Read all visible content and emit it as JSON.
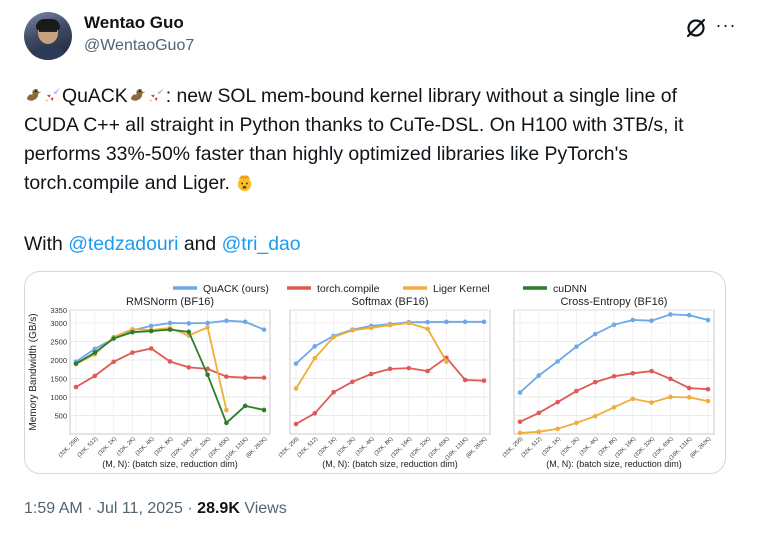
{
  "author": {
    "name": "Wentao Guo",
    "handle": "@WentaoGuo7"
  },
  "icons": {
    "grok": "grok-icon",
    "more": "more-icon"
  },
  "tweet": {
    "lead": "QuACK",
    "body": ": new SOL mem-bound kernel library without a single line of CUDA C++ all straight in Python thanks to CuTe-DSL. On H100 with 3TB/s, it performs 33%-50% faster than highly optimized libraries like PyTorch's torch.compile and Liger.",
    "with": "With",
    "mention1": "@tedzadouri",
    "and": "and",
    "mention2": "@tri_dao"
  },
  "meta": {
    "time": "1:59 AM",
    "date": "Jul 11, 2025",
    "views_count": "28.9K",
    "views_label": "Views",
    "sep": "·"
  },
  "chart_data": {
    "type": "line",
    "ylabel": "Memory Bandwidth (GB/s)",
    "xlabel": "(M, N): (batch size, reduction dim)",
    "yticks": [
      500,
      1000,
      1500,
      2000,
      2500,
      3000,
      3350
    ],
    "ylim": [
      0,
      3350
    ],
    "legend": [
      {
        "name": "QuACK (ours)",
        "color": "#6fa8e8"
      },
      {
        "name": "torch.compile",
        "color": "#e05a55"
      },
      {
        "name": "Liger Kernel",
        "color": "#f0ad3a"
      },
      {
        "name": "cuDNN",
        "color": "#2a7e2a"
      }
    ],
    "panels": [
      {
        "title": "RMSNorm (BF16)",
        "categories": [
          "(32K, 256)",
          "(32K, 512)",
          "(32K, 1K)",
          "(32K, 2K)",
          "(32K, 4K)",
          "(32K, 8K)",
          "(32K, 16K)",
          "(32K, 32K)",
          "(32K, 65K)",
          "(16K, 131K)",
          "(8K, 262K)"
        ],
        "series": [
          {
            "name": "QuACK (ours)",
            "values": [
              1950,
              2300,
              2580,
              2800,
              2920,
              3000,
              2990,
              3000,
              3060,
              3030,
              2820
            ]
          },
          {
            "name": "torch.compile",
            "values": [
              1270,
              1570,
              1950,
              2200,
              2310,
              1960,
              1800,
              1760,
              1550,
              1520,
              1520
            ]
          },
          {
            "name": "Liger Kernel",
            "values": [
              1890,
              2150,
              2620,
              2830,
              2810,
              2860,
              2660,
              2880,
              650,
              null,
              null
            ]
          },
          {
            "name": "cuDNN",
            "values": [
              1900,
              2200,
              2580,
              2750,
              2780,
              2820,
              2760,
              1600,
              300,
              760,
              650
            ]
          }
        ]
      },
      {
        "title": "Softmax (BF16)",
        "categories": [
          "(32K, 256)",
          "(32K, 512)",
          "(32K, 1K)",
          "(32K, 2K)",
          "(32K, 4K)",
          "(32K, 8K)",
          "(32K, 16K)",
          "(32K, 32K)",
          "(32K, 65K)",
          "(16K, 131K)",
          "(8K, 262K)"
        ],
        "series": [
          {
            "name": "QuACK (ours)",
            "values": [
              1900,
              2370,
              2650,
              2820,
              2920,
              2970,
              3020,
              3020,
              3030,
              3030,
              3030
            ]
          },
          {
            "name": "torch.compile",
            "values": [
              270,
              560,
              1130,
              1410,
              1620,
              1760,
              1780,
              1700,
              2060,
              1460,
              1440
            ]
          },
          {
            "name": "Liger Kernel",
            "values": [
              1230,
              2050,
              2620,
              2800,
              2870,
              2940,
              3000,
              2840,
              1960,
              null,
              null
            ]
          }
        ]
      },
      {
        "title": "Cross-Entropy (BF16)",
        "categories": [
          "(32K, 256)",
          "(32K, 512)",
          "(32K, 1K)",
          "(32K, 2K)",
          "(32K, 4K)",
          "(32K, 8K)",
          "(32K, 16K)",
          "(32K, 32K)",
          "(32K, 65K)",
          "(16K, 131K)",
          "(8K, 262K)"
        ],
        "series": [
          {
            "name": "QuACK (ours)",
            "values": [
              1120,
              1580,
              1960,
              2360,
              2700,
              2950,
              3080,
              3060,
              3230,
              3210,
              3080
            ]
          },
          {
            "name": "torch.compile",
            "values": [
              330,
              570,
              860,
              1160,
              1400,
              1560,
              1640,
              1700,
              1490,
              1240,
              1210
            ]
          },
          {
            "name": "Liger Kernel",
            "values": [
              30,
              60,
              140,
              300,
              480,
              720,
              950,
              850,
              1000,
              990,
              890
            ]
          }
        ]
      }
    ]
  }
}
